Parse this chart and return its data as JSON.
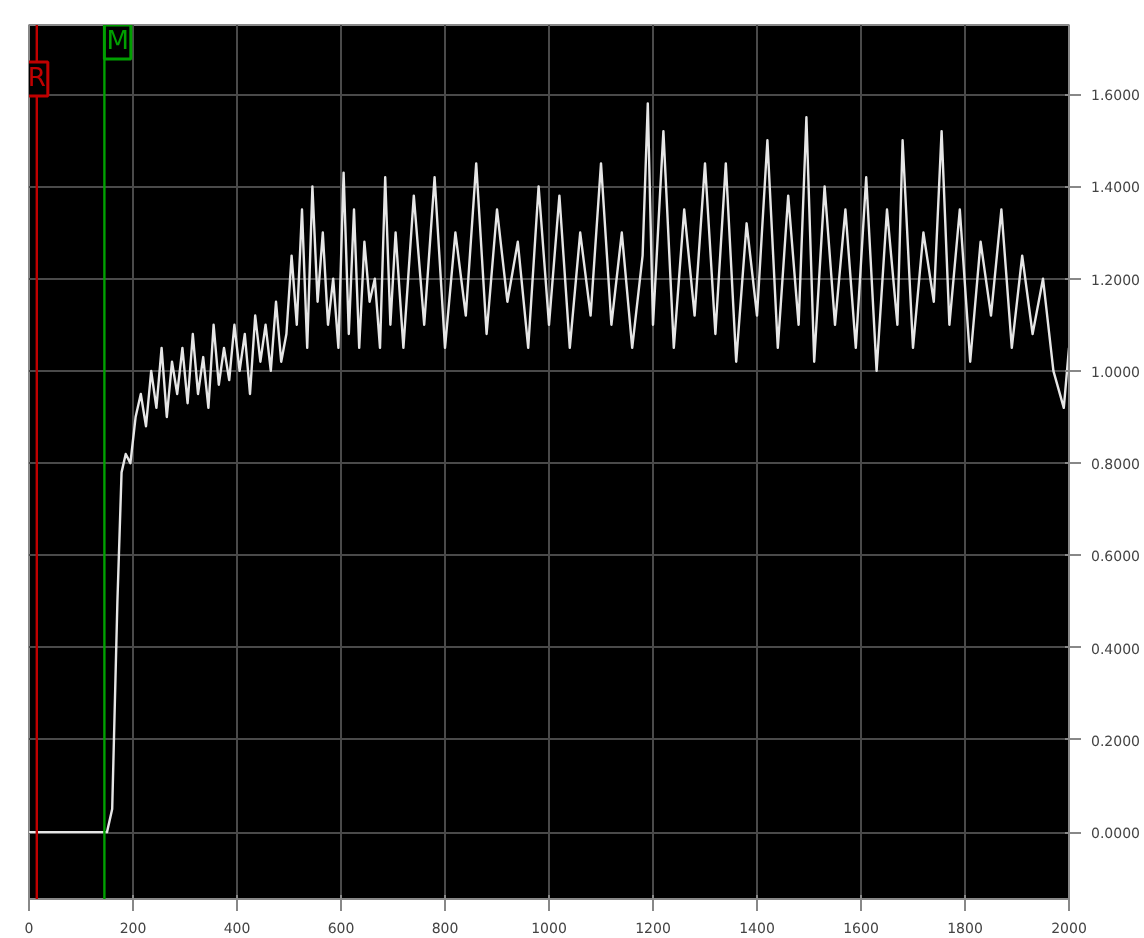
{
  "chart_data": {
    "type": "line",
    "series": [
      {
        "color": "#e6e6e6",
        "x": [
          0,
          50,
          100,
          150,
          160,
          170,
          178,
          186,
          195,
          205,
          215,
          225,
          235,
          245,
          255,
          265,
          275,
          285,
          295,
          305,
          315,
          325,
          335,
          345,
          355,
          365,
          375,
          385,
          395,
          405,
          415,
          425,
          435,
          445,
          455,
          465,
          475,
          485,
          495,
          505,
          515,
          525,
          535,
          545,
          555,
          565,
          575,
          585,
          595,
          605,
          615,
          625,
          635,
          645,
          655,
          665,
          675,
          685,
          695,
          705,
          720,
          740,
          760,
          780,
          800,
          820,
          840,
          860,
          880,
          900,
          920,
          940,
          960,
          980,
          1000,
          1020,
          1040,
          1060,
          1080,
          1100,
          1120,
          1140,
          1160,
          1180,
          1190,
          1200,
          1220,
          1240,
          1260,
          1280,
          1300,
          1320,
          1340,
          1360,
          1380,
          1400,
          1420,
          1440,
          1460,
          1480,
          1495,
          1510,
          1530,
          1550,
          1570,
          1590,
          1610,
          1630,
          1650,
          1670,
          1680,
          1700,
          1720,
          1740,
          1755,
          1770,
          1790,
          1810,
          1830,
          1850,
          1870,
          1890,
          1910,
          1930,
          1950,
          1970,
          1990,
          2000
        ],
        "values": [
          0.0,
          0.0,
          0.0,
          0.0,
          0.05,
          0.5,
          0.78,
          0.82,
          0.8,
          0.9,
          0.95,
          0.88,
          1.0,
          0.92,
          1.05,
          0.9,
          1.02,
          0.95,
          1.05,
          0.93,
          1.08,
          0.95,
          1.03,
          0.92,
          1.1,
          0.97,
          1.05,
          0.98,
          1.1,
          1.0,
          1.08,
          0.95,
          1.12,
          1.02,
          1.1,
          1.0,
          1.15,
          1.02,
          1.08,
          1.25,
          1.1,
          1.35,
          1.05,
          1.4,
          1.15,
          1.3,
          1.1,
          1.2,
          1.05,
          1.43,
          1.08,
          1.35,
          1.05,
          1.28,
          1.15,
          1.2,
          1.05,
          1.42,
          1.1,
          1.3,
          1.05,
          1.38,
          1.1,
          1.42,
          1.05,
          1.3,
          1.12,
          1.45,
          1.08,
          1.35,
          1.15,
          1.28,
          1.05,
          1.4,
          1.1,
          1.38,
          1.05,
          1.3,
          1.12,
          1.45,
          1.1,
          1.3,
          1.05,
          1.25,
          1.58,
          1.1,
          1.52,
          1.05,
          1.35,
          1.12,
          1.45,
          1.08,
          1.45,
          1.02,
          1.32,
          1.12,
          1.5,
          1.05,
          1.38,
          1.1,
          1.55,
          1.02,
          1.4,
          1.1,
          1.35,
          1.05,
          1.42,
          1.0,
          1.35,
          1.1,
          1.5,
          1.05,
          1.3,
          1.15,
          1.52,
          1.1,
          1.35,
          1.02,
          1.28,
          1.12,
          1.35,
          1.05,
          1.25,
          1.08,
          1.2,
          1.0,
          0.92,
          1.05
        ]
      }
    ],
    "xlim": [
      0,
      2000
    ],
    "ylim": [
      -0.145,
      1.75
    ],
    "xticks": [
      0,
      200,
      400,
      600,
      800,
      1000,
      1200,
      1400,
      1600,
      1800,
      2000
    ],
    "yticks": [
      {
        "value": 0,
        "label": "0.0000"
      },
      {
        "value": 0.2,
        "label": "0.2000"
      },
      {
        "value": 0.4,
        "label": "0.4000"
      },
      {
        "value": 0.6,
        "label": "0.6000"
      },
      {
        "value": 0.8,
        "label": "0.8000"
      },
      {
        "value": 1.0,
        "label": "1.0000"
      },
      {
        "value": 1.2,
        "label": "1.2000"
      },
      {
        "value": 1.4,
        "label": "1.4000"
      },
      {
        "value": 1.6,
        "label": "1.6000"
      }
    ],
    "grid": true,
    "ref_lines": [
      {
        "axis": "x",
        "value": 15,
        "label": "R",
        "color": "#c00000"
      },
      {
        "axis": "x",
        "value": 145,
        "label": "M",
        "color": "#00a000"
      }
    ]
  }
}
